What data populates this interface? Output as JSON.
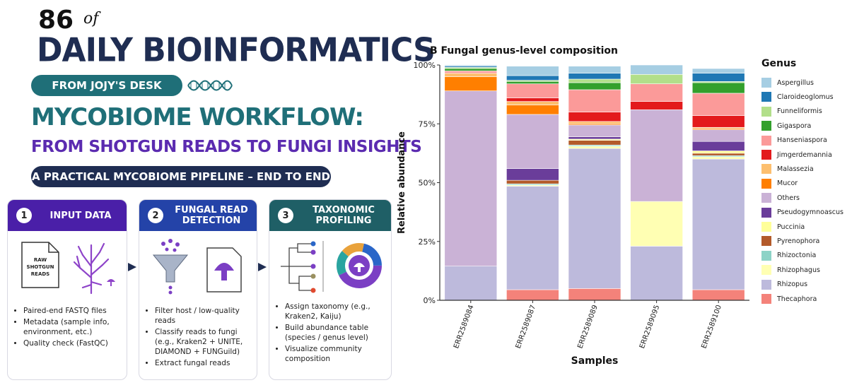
{
  "infographic": {
    "number": "86",
    "of": "of",
    "title": "DAILY BIOINFORMATICS",
    "desk": "FROM JOJY'S DESK",
    "workflow_title": "MYCOBIOME WORKFLOW:",
    "workflow_subtitle": "FROM SHOTGUN READS TO FUNGI INSIGHTS",
    "practical": "A PRACTICAL MYCOBIOME PIPELINE – END TO END",
    "colors": {
      "navy": "#1f2d52",
      "teal": "#1f6f78",
      "purple": "#5b2bb0",
      "step1": "#4a1fa8",
      "step2": "#2443a8",
      "step3": "#1f5f66"
    },
    "steps": [
      {
        "num": "1",
        "title": "INPUT DATA",
        "doc_label": "RAW SHOTGUN READS",
        "icon": "fungus-tree-icon",
        "bullets": [
          "Paired-end FASTQ files",
          "Metadata (sample info, environment, etc.)",
          "Quality check (FastQC)"
        ]
      },
      {
        "num": "2",
        "title": "FUNGAL READ DETECTION",
        "icon": "funnel-icon",
        "bullets": [
          "Filter host / low-quality reads",
          "Classify reads to fungi (e.g., Kraken2 + UNITE, DIAMOND + FUNGuild)",
          "Extract fungal reads"
        ]
      },
      {
        "num": "3",
        "title": "TAXONOMIC PROFILING",
        "icon": "donut-chart-icon",
        "bullets": [
          "Assign taxonomy (e.g., Kraken2, Kaiju)",
          "Build abundance table (species / genus level)",
          "Visualize community composition"
        ]
      }
    ]
  },
  "chart_data": {
    "type": "bar",
    "stacked": true,
    "title": "B  Fungal genus-level composition",
    "xlabel": "Samples",
    "ylabel": "Relative abundance",
    "ylim": [
      0,
      100
    ],
    "yticks": [
      "0%",
      "25%",
      "50%",
      "75%",
      "100%"
    ],
    "legend_title": "Genus",
    "legend_position": "right",
    "categories": [
      "ERR2589084",
      "ERR2589087",
      "ERR2589089",
      "ERR2589095",
      "ERR2589100"
    ],
    "series": [
      {
        "name": "Thecaphora",
        "color": "#f4827a",
        "values": [
          0,
          4.5,
          5,
          0,
          4.5
        ]
      },
      {
        "name": "Rhizopus",
        "color": "#bdbadc",
        "values": [
          14.5,
          44,
          59.5,
          23,
          55.5
        ]
      },
      {
        "name": "Rhizophagus",
        "color": "#ffffb3",
        "values": [
          0,
          0.5,
          1,
          19,
          1
        ]
      },
      {
        "name": "Rhizoctonia",
        "color": "#8dd3c7",
        "values": [
          0,
          0.5,
          0.5,
          0,
          0.5
        ]
      },
      {
        "name": "Pyrenophora",
        "color": "#b35a2a",
        "values": [
          0,
          1.5,
          2,
          0,
          1
        ]
      },
      {
        "name": "Puccinia",
        "color": "#ffff99",
        "values": [
          0,
          0,
          0.5,
          0,
          1
        ]
      },
      {
        "name": "Pseudogymnoascus",
        "color": "#6a3d9a",
        "values": [
          0,
          5,
          1,
          0,
          4
        ]
      },
      {
        "name": "Others",
        "color": "#cab2d6",
        "values": [
          74.5,
          23,
          5,
          39,
          5
        ]
      },
      {
        "name": "Mucor",
        "color": "#ff7f00",
        "values": [
          6,
          4,
          0.5,
          0,
          0.5
        ]
      },
      {
        "name": "Malassezia",
        "color": "#fdbf6f",
        "values": [
          1.5,
          1.5,
          1,
          0,
          0.5
        ]
      },
      {
        "name": "Jimgerdemannia",
        "color": "#e31a1c",
        "values": [
          0,
          1.5,
          4,
          3.5,
          5
        ]
      },
      {
        "name": "Hanseniaspora",
        "color": "#fb9a99",
        "values": [
          1,
          6,
          9.5,
          7.5,
          9.5
        ]
      },
      {
        "name": "Gigaspora",
        "color": "#33a02c",
        "values": [
          1,
          1,
          3,
          0,
          4.5
        ]
      },
      {
        "name": "Funneliformis",
        "color": "#b2df8a",
        "values": [
          0.5,
          0.5,
          1.5,
          4,
          0.5
        ]
      },
      {
        "name": "Claroideoglomus",
        "color": "#1f78b4",
        "values": [
          0.5,
          2,
          2.5,
          0,
          3.5
        ]
      },
      {
        "name": "Aspergillus",
        "color": "#a6cee3",
        "values": [
          0.5,
          4,
          3,
          4,
          2
        ]
      }
    ]
  }
}
